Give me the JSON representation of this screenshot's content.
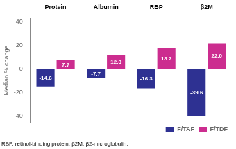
{
  "chart_data": {
    "type": "bar",
    "categories": [
      "Protein",
      "Albumin",
      "RBP",
      "β2M"
    ],
    "series": [
      {
        "name": "F/TAF",
        "color": "#2e3192",
        "values": [
          -14.6,
          -7.7,
          -16.3,
          -39.6
        ]
      },
      {
        "name": "F/TDF",
        "color": "#cc2d8f",
        "values": [
          7.7,
          12.3,
          18.2,
          22.0
        ],
        "value_labels": [
          "7.7",
          "12.3",
          "18.2",
          "22.0"
        ]
      }
    ],
    "ylabel": "Median % change",
    "ylim": [
      -45,
      43
    ],
    "yticks": [
      -40,
      -20,
      0,
      20,
      40
    ],
    "data_labels": true,
    "grid": false,
    "legend": "lower right",
    "annotations": [
      "RBP, retinol-binding protein; β2M, β2-microglobulin."
    ]
  }
}
